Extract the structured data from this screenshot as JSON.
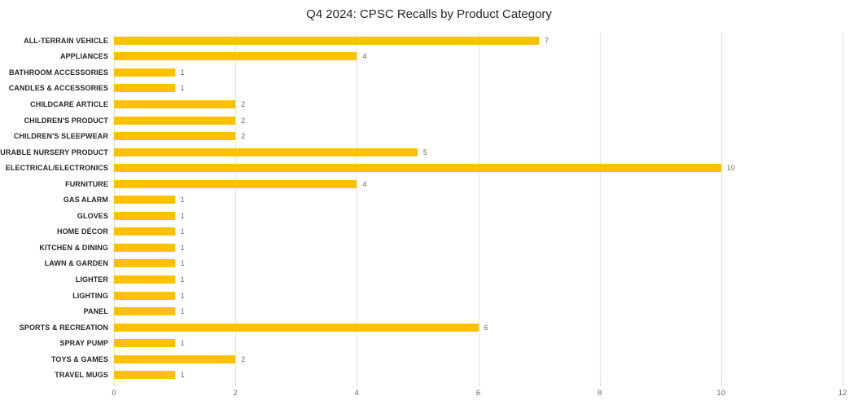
{
  "title": "Q4 2024: CPSC Recalls by Product Category",
  "colors": {
    "bar": "#FDC101",
    "gridline": "#EADFE3",
    "tick_mark": "#E0D4D8",
    "data_label": "#6E6660",
    "tick_label": "#6E6660",
    "category_label": "#262626",
    "title": "#262626",
    "background": "#FFFFFF"
  },
  "chart_data": {
    "type": "bar",
    "orientation": "horizontal",
    "title": "Q4 2024: CPSC Recalls by Product Category",
    "xlabel": "",
    "ylabel": "",
    "categories": [
      "ALL-TERRAIN VEHICLE",
      "APPLIANCES",
      "BATHROOM ACCESSORIES",
      "CANDLES & ACCESSORIES",
      "CHILDCARE ARTICLE",
      "CHILDREN'S PRODUCT",
      "CHILDREN'S SLEEPWEAR",
      "DURABLE NURSERY PRODUCT",
      "ELECTRICAL/ELECTRONICS",
      "FURNITURE",
      "GAS ALARM",
      "GLOVES",
      "HOME DÉCOR",
      "KITCHEN & DINING",
      "LAWN & GARDEN",
      "LIGHTER",
      "LIGHTING",
      "PANEL",
      "SPORTS & RECREATION",
      "SPRAY PUMP",
      "TOYS & GAMES",
      "TRAVEL MUGS"
    ],
    "values": [
      7,
      4,
      1,
      1,
      2,
      2,
      2,
      5,
      10,
      4,
      1,
      1,
      1,
      1,
      1,
      1,
      1,
      1,
      6,
      1,
      2,
      1
    ],
    "xlim": [
      0,
      12
    ],
    "xticks": [
      0,
      2,
      4,
      6,
      8,
      10,
      12
    ],
    "grid": "vertical",
    "data_labels": true,
    "legend": "none"
  }
}
